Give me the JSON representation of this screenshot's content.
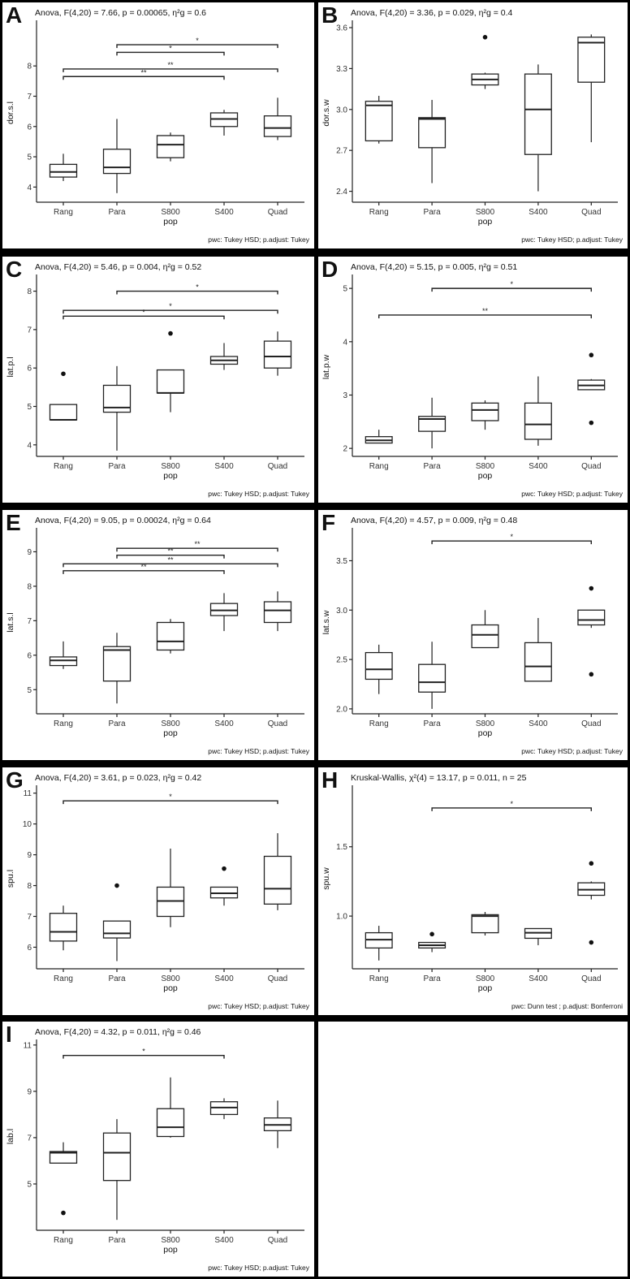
{
  "populations": [
    "Rang",
    "Para",
    "S800",
    "S400",
    "Quad"
  ],
  "chart_data": [
    {
      "panel": "A",
      "type": "box",
      "title": "Anova, F(4,20) = 7.66, p = 0.00065, η²g = 0.6",
      "ylabel": "dor.s.l",
      "xlabel": "pop",
      "footnote": "pwc: Tukey HSD; p.adjust: Tukey",
      "ylim": [
        3.5,
        9.4
      ],
      "yticks": [
        4,
        5,
        6,
        7,
        8
      ],
      "boxes": [
        {
          "min": 4.2,
          "q1": 4.33,
          "med": 4.5,
          "q3": 4.75,
          "max": 5.1,
          "out": []
        },
        {
          "min": 3.8,
          "q1": 4.45,
          "med": 4.65,
          "q3": 5.25,
          "max": 6.25,
          "out": []
        },
        {
          "min": 4.85,
          "q1": 4.97,
          "med": 5.4,
          "q3": 5.7,
          "max": 5.8,
          "out": []
        },
        {
          "min": 5.7,
          "q1": 6.0,
          "med": 6.25,
          "q3": 6.45,
          "max": 6.55,
          "out": []
        },
        {
          "min": 5.55,
          "q1": 5.67,
          "med": 5.95,
          "q3": 6.35,
          "max": 6.95,
          "out": []
        }
      ],
      "comparisons": [
        {
          "from": "Para",
          "to": "Quad",
          "label": "*",
          "y": 8.7
        },
        {
          "from": "Para",
          "to": "S400",
          "label": "*",
          "y": 8.45
        },
        {
          "from": "Rang",
          "to": "Quad",
          "label": "**",
          "y": 7.9
        },
        {
          "from": "Rang",
          "to": "S400",
          "label": "**",
          "y": 7.65
        }
      ]
    },
    {
      "panel": "B",
      "type": "box",
      "title": "Anova, F(4,20) = 3.36, p = 0.029, η²g = 0.4",
      "ylabel": "dor.s.w",
      "xlabel": "pop",
      "footnote": "pwc: Tukey HSD; p.adjust: Tukey",
      "ylim": [
        2.32,
        3.63
      ],
      "yticks": [
        2.4,
        2.7,
        3.0,
        3.3,
        3.6
      ],
      "boxes": [
        {
          "min": 2.75,
          "q1": 2.77,
          "med": 3.03,
          "q3": 3.06,
          "max": 3.1,
          "out": []
        },
        {
          "min": 2.46,
          "q1": 2.72,
          "med": 2.93,
          "q3": 2.94,
          "max": 3.07,
          "out": []
        },
        {
          "min": 3.15,
          "q1": 3.18,
          "med": 3.22,
          "q3": 3.26,
          "max": 3.27,
          "out": [
            3.53
          ]
        },
        {
          "min": 2.4,
          "q1": 2.67,
          "med": 3.0,
          "q3": 3.26,
          "max": 3.33,
          "out": []
        },
        {
          "min": 2.76,
          "q1": 3.2,
          "med": 3.49,
          "q3": 3.53,
          "max": 3.55,
          "out": []
        }
      ],
      "comparisons": []
    },
    {
      "panel": "C",
      "type": "box",
      "title": "Anova, F(4,20) = 5.46, p = 0.004, η²g = 0.52",
      "ylabel": "lat.p.l",
      "xlabel": "pop",
      "footnote": "pwc: Tukey HSD; p.adjust: Tukey",
      "ylim": [
        3.7,
        8.35
      ],
      "yticks": [
        4,
        5,
        6,
        7,
        8
      ],
      "boxes": [
        {
          "min": 4.65,
          "q1": 4.65,
          "med": 4.65,
          "q3": 5.05,
          "max": 5.05,
          "out": [
            5.85
          ]
        },
        {
          "min": 3.85,
          "q1": 4.85,
          "med": 4.97,
          "q3": 5.55,
          "max": 6.05,
          "out": []
        },
        {
          "min": 4.85,
          "q1": 5.35,
          "med": 5.35,
          "q3": 5.95,
          "max": 5.95,
          "out": [
            6.9
          ]
        },
        {
          "min": 5.95,
          "q1": 6.1,
          "med": 6.2,
          "q3": 6.3,
          "max": 6.65,
          "out": []
        },
        {
          "min": 5.8,
          "q1": 6.0,
          "med": 6.3,
          "q3": 6.7,
          "max": 6.95,
          "out": []
        }
      ],
      "comparisons": [
        {
          "from": "Para",
          "to": "Quad",
          "label": "*",
          "y": 8.0
        },
        {
          "from": "Rang",
          "to": "Quad",
          "label": "*",
          "y": 7.5
        },
        {
          "from": "Rang",
          "to": "S400",
          "label": "*",
          "y": 7.35
        }
      ]
    },
    {
      "panel": "D",
      "type": "box",
      "title": "Anova, F(4,20) = 5.15, p = 0.005, η²g = 0.51",
      "ylabel": "lat.p.w",
      "xlabel": "pop",
      "footnote": "pwc: Tukey HSD; p.adjust: Tukey",
      "ylim": [
        1.85,
        5.2
      ],
      "yticks": [
        2,
        3,
        4,
        5
      ],
      "boxes": [
        {
          "min": 2.1,
          "q1": 2.1,
          "med": 2.15,
          "q3": 2.22,
          "max": 2.35,
          "out": []
        },
        {
          "min": 2.0,
          "q1": 2.32,
          "med": 2.55,
          "q3": 2.6,
          "max": 2.95,
          "out": []
        },
        {
          "min": 2.35,
          "q1": 2.52,
          "med": 2.72,
          "q3": 2.85,
          "max": 2.9,
          "out": []
        },
        {
          "min": 2.05,
          "q1": 2.17,
          "med": 2.45,
          "q3": 2.85,
          "max": 3.35,
          "out": []
        },
        {
          "min": 3.1,
          "q1": 3.1,
          "med": 3.18,
          "q3": 3.28,
          "max": 3.3,
          "out": [
            3.75,
            2.48
          ]
        }
      ],
      "comparisons": [
        {
          "from": "Para",
          "to": "Quad",
          "label": "*",
          "y": 5.0
        },
        {
          "from": "Rang",
          "to": "Quad",
          "label": "**",
          "y": 4.5
        }
      ]
    },
    {
      "panel": "E",
      "type": "box",
      "title": "Anova, F(4,20) = 9.05, p = 0.00024, η²g = 0.64",
      "ylabel": "lat.s.l",
      "xlabel": "pop",
      "footnote": "pwc: Tukey HSD; p.adjust: Tukey",
      "ylim": [
        4.3,
        9.6
      ],
      "yticks": [
        5,
        6,
        7,
        8,
        9
      ],
      "boxes": [
        {
          "min": 5.6,
          "q1": 5.7,
          "med": 5.85,
          "q3": 5.95,
          "max": 6.4,
          "out": []
        },
        {
          "min": 4.6,
          "q1": 5.25,
          "med": 6.15,
          "q3": 6.25,
          "max": 6.65,
          "out": []
        },
        {
          "min": 6.05,
          "q1": 6.15,
          "med": 6.4,
          "q3": 6.95,
          "max": 7.05,
          "out": []
        },
        {
          "min": 6.7,
          "q1": 7.15,
          "med": 7.3,
          "q3": 7.5,
          "max": 7.8,
          "out": []
        },
        {
          "min": 6.7,
          "q1": 6.95,
          "med": 7.3,
          "q3": 7.55,
          "max": 7.85,
          "out": []
        }
      ],
      "comparisons": [
        {
          "from": "Para",
          "to": "Quad",
          "label": "**",
          "y": 9.1
        },
        {
          "from": "Para",
          "to": "S400",
          "label": "**",
          "y": 8.9
        },
        {
          "from": "Rang",
          "to": "Quad",
          "label": "**",
          "y": 8.65
        },
        {
          "from": "Rang",
          "to": "S400",
          "label": "**",
          "y": 8.45
        }
      ]
    },
    {
      "panel": "F",
      "type": "box",
      "title": "Anova, F(4,20) = 4.57, p = 0.009, η²g = 0.48",
      "ylabel": "lat.s.w",
      "xlabel": "pop",
      "footnote": "pwc: Tukey HSD; p.adjust: Tukey",
      "ylim": [
        1.95,
        3.8
      ],
      "yticks": [
        2.0,
        2.5,
        3.0,
        3.5
      ],
      "boxes": [
        {
          "min": 2.15,
          "q1": 2.3,
          "med": 2.4,
          "q3": 2.57,
          "max": 2.65,
          "out": []
        },
        {
          "min": 2.0,
          "q1": 2.17,
          "med": 2.27,
          "q3": 2.45,
          "max": 2.68,
          "out": []
        },
        {
          "min": 2.62,
          "q1": 2.62,
          "med": 2.75,
          "q3": 2.85,
          "max": 3.0,
          "out": []
        },
        {
          "min": 2.28,
          "q1": 2.28,
          "med": 2.43,
          "q3": 2.67,
          "max": 2.92,
          "out": []
        },
        {
          "min": 2.82,
          "q1": 2.85,
          "med": 2.9,
          "q3": 3.0,
          "max": 3.0,
          "out": [
            3.22,
            2.35
          ]
        }
      ],
      "comparisons": [
        {
          "from": "Para",
          "to": "Quad",
          "label": "*",
          "y": 3.7
        }
      ]
    },
    {
      "panel": "G",
      "type": "box",
      "title": "Anova, F(4,20) = 3.61, p = 0.023, η²g = 0.42",
      "ylabel": "spu.l",
      "xlabel": "pop",
      "footnote": "pwc: Tukey HSD; p.adjust: Tukey",
      "ylim": [
        5.3,
        11.15
      ],
      "yticks": [
        6,
        7,
        8,
        9,
        10,
        11
      ],
      "boxes": [
        {
          "min": 5.9,
          "q1": 6.2,
          "med": 6.5,
          "q3": 7.1,
          "max": 7.35,
          "out": []
        },
        {
          "min": 5.55,
          "q1": 6.3,
          "med": 6.45,
          "q3": 6.85,
          "max": 6.85,
          "out": [
            8.0
          ]
        },
        {
          "min": 6.65,
          "q1": 7.0,
          "med": 7.5,
          "q3": 7.95,
          "max": 9.2,
          "out": []
        },
        {
          "min": 7.35,
          "q1": 7.6,
          "med": 7.75,
          "q3": 7.95,
          "max": 7.95,
          "out": [
            8.55
          ]
        },
        {
          "min": 7.2,
          "q1": 7.4,
          "med": 7.9,
          "q3": 8.95,
          "max": 9.7,
          "out": []
        }
      ],
      "comparisons": [
        {
          "from": "Rang",
          "to": "Quad",
          "label": "*",
          "y": 10.75
        }
      ]
    },
    {
      "panel": "H",
      "type": "box",
      "title": "Kruskal-Wallis, χ²(4) = 13.17, p = 0.011, n = 25",
      "ylabel": "spu.w",
      "xlabel": "pop",
      "footnote": "pwc: Dunn test ; p.adjust: Bonferroni",
      "ylim": [
        0.62,
        1.92
      ],
      "yticks": [
        1.0,
        1.5
      ],
      "boxes": [
        {
          "min": 0.68,
          "q1": 0.77,
          "med": 0.83,
          "q3": 0.88,
          "max": 0.93,
          "out": []
        },
        {
          "min": 0.74,
          "q1": 0.77,
          "med": 0.79,
          "q3": 0.81,
          "max": 0.81,
          "out": [
            0.87
          ]
        },
        {
          "min": 0.86,
          "q1": 0.88,
          "med": 1.0,
          "q3": 1.01,
          "max": 1.03,
          "out": []
        },
        {
          "min": 0.79,
          "q1": 0.84,
          "med": 0.88,
          "q3": 0.91,
          "max": 0.91,
          "out": []
        },
        {
          "min": 1.12,
          "q1": 1.15,
          "med": 1.19,
          "q3": 1.24,
          "max": 1.25,
          "out": [
            1.38,
            0.81
          ]
        }
      ],
      "comparisons": [
        {
          "from": "Para",
          "to": "Quad",
          "label": "*",
          "y": 1.78
        }
      ]
    },
    {
      "panel": "I",
      "type": "box",
      "title": "Anova, F(4,20) = 4.32, p = 0.011, η²g = 0.46",
      "ylabel": "lab.l",
      "xlabel": "pop",
      "footnote": "pwc: Tukey HSD; p.adjust: Tukey",
      "ylim": [
        3.0,
        11.1
      ],
      "yticks": [
        5,
        7,
        9,
        11
      ],
      "boxes": [
        {
          "min": 5.9,
          "q1": 5.9,
          "med": 6.35,
          "q3": 6.4,
          "max": 6.8,
          "out": [
            3.75
          ]
        },
        {
          "min": 3.45,
          "q1": 5.15,
          "med": 6.35,
          "q3": 7.2,
          "max": 7.8,
          "out": []
        },
        {
          "min": 7.0,
          "q1": 7.05,
          "med": 7.45,
          "q3": 8.25,
          "max": 9.6,
          "out": []
        },
        {
          "min": 7.8,
          "q1": 8.0,
          "med": 8.3,
          "q3": 8.55,
          "max": 8.7,
          "out": []
        },
        {
          "min": 6.55,
          "q1": 7.3,
          "med": 7.55,
          "q3": 7.85,
          "max": 8.6,
          "out": []
        }
      ],
      "comparisons": [
        {
          "from": "Rang",
          "to": "S400",
          "label": "*",
          "y": 10.55
        }
      ]
    }
  ]
}
